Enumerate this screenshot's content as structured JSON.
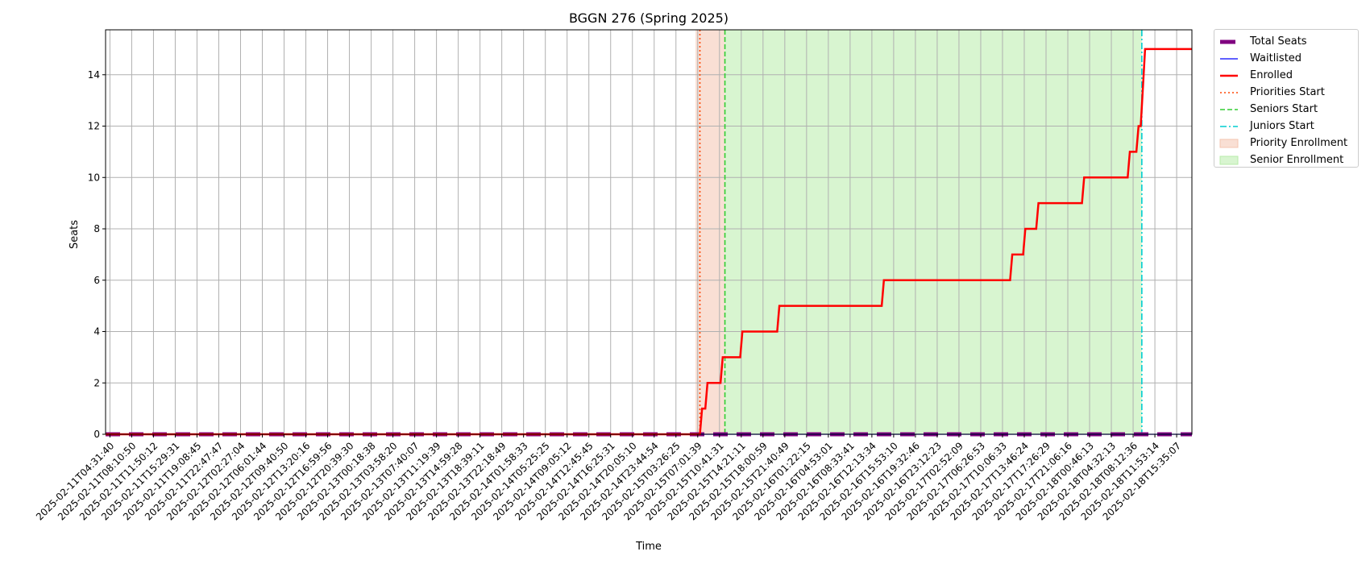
{
  "chart_data": {
    "type": "line",
    "title": "BGGN 276 (Spring 2025)",
    "xlabel": "Time",
    "ylabel": "Seats",
    "ylim": [
      0,
      15.75
    ],
    "y_ticks": [
      0,
      2,
      4,
      6,
      8,
      10,
      12,
      14
    ],
    "x_ticks": [
      "2025-02-11T04:31:40",
      "2025-02-11T08:10:50",
      "2025-02-11T11:50:12",
      "2025-02-11T15:29:31",
      "2025-02-11T19:08:45",
      "2025-02-11T22:47:47",
      "2025-02-12T02:27:04",
      "2025-02-12T06:01:44",
      "2025-02-12T09:40:50",
      "2025-02-12T13:20:16",
      "2025-02-12T16:59:56",
      "2025-02-12T20:39:30",
      "2025-02-13T00:18:38",
      "2025-02-13T03:58:20",
      "2025-02-13T07:40:07",
      "2025-02-13T11:19:39",
      "2025-02-13T14:59:28",
      "2025-02-13T18:39:11",
      "2025-02-13T22:18:49",
      "2025-02-14T01:58:33",
      "2025-02-14T05:25:25",
      "2025-02-14T09:05:12",
      "2025-02-14T12:45:45",
      "2025-02-14T16:25:31",
      "2025-02-14T20:05:10",
      "2025-02-14T23:44:54",
      "2025-02-15T03:26:25",
      "2025-02-15T07:01:39",
      "2025-02-15T10:41:31",
      "2025-02-15T14:21:11",
      "2025-02-15T18:00:59",
      "2025-02-15T21:40:49",
      "2025-02-16T01:22:15",
      "2025-02-16T04:53:01",
      "2025-02-16T08:33:41",
      "2025-02-16T12:13:34",
      "2025-02-16T15:53:10",
      "2025-02-16T19:32:46",
      "2025-02-16T23:12:23",
      "2025-02-17T02:52:09",
      "2025-02-17T06:26:53",
      "2025-02-17T10:06:33",
      "2025-02-17T13:46:24",
      "2025-02-17T17:26:29",
      "2025-02-17T21:06:16",
      "2025-02-18T00:46:13",
      "2025-02-18T04:32:13",
      "2025-02-18T08:12:36",
      "2025-02-18T11:53:14",
      "2025-02-18T15:35:07"
    ],
    "x_range": [
      -0.2,
      49.7
    ],
    "series": [
      {
        "name": "Total Seats",
        "color": "#800080",
        "style": "dashed-thick",
        "points": [
          [
            -0.2,
            0
          ],
          [
            49.7,
            0
          ]
        ]
      },
      {
        "name": "Waitlisted",
        "color": "#0000ff",
        "style": "solid-thin",
        "points": [
          [
            -0.2,
            0
          ],
          [
            49.7,
            0
          ]
        ]
      },
      {
        "name": "Enrolled",
        "color": "#ff0000",
        "style": "solid-thick",
        "points": [
          [
            -0.2,
            0
          ],
          [
            27.1,
            0
          ],
          [
            27.2,
            1
          ],
          [
            27.35,
            1
          ],
          [
            27.45,
            2
          ],
          [
            28.05,
            2
          ],
          [
            28.15,
            3
          ],
          [
            28.95,
            3
          ],
          [
            29.05,
            4
          ],
          [
            30.65,
            4
          ],
          [
            30.75,
            5
          ],
          [
            35.45,
            5
          ],
          [
            35.55,
            6
          ],
          [
            41.35,
            6
          ],
          [
            41.45,
            7
          ],
          [
            41.95,
            7
          ],
          [
            42.05,
            8
          ],
          [
            42.55,
            8
          ],
          [
            42.65,
            9
          ],
          [
            44.65,
            9
          ],
          [
            44.75,
            10
          ],
          [
            46.75,
            10
          ],
          [
            46.85,
            11
          ],
          [
            47.15,
            11
          ],
          [
            47.25,
            12
          ],
          [
            47.35,
            12
          ],
          [
            47.55,
            15
          ],
          [
            49.7,
            15
          ]
        ]
      }
    ],
    "vertical_lines": [
      {
        "name": "Priorities Start",
        "x": 27.1,
        "color": "#ff4500",
        "style": "dotted"
      },
      {
        "name": "Seniors Start",
        "x": 28.25,
        "color": "#32cd32",
        "style": "dashed"
      },
      {
        "name": "Juniors Start",
        "x": 47.4,
        "color": "#00ced1",
        "style": "dashdot"
      }
    ],
    "shaded_regions": [
      {
        "name": "Priority Enrollment",
        "x0": 26.9,
        "x1": 28.25,
        "color": "#f4c4b0"
      },
      {
        "name": "Senior Enrollment",
        "x0": 28.25,
        "x1": 47.4,
        "color": "#b8ecaa"
      }
    ],
    "grid": true,
    "legend_placement": "outside-top-right"
  },
  "legend": {
    "items": [
      {
        "label": "Total Seats",
        "kind": "thick-dash",
        "color": "#800080"
      },
      {
        "label": "Waitlisted",
        "kind": "line",
        "color": "#0000ff"
      },
      {
        "label": "Enrolled",
        "kind": "thick-line",
        "color": "#ff0000"
      },
      {
        "label": "Priorities Start",
        "kind": "dotted",
        "color": "#ff4500"
      },
      {
        "label": "Seniors Start",
        "kind": "dashed",
        "color": "#32cd32"
      },
      {
        "label": "Juniors Start",
        "kind": "dashdot",
        "color": "#00ced1"
      },
      {
        "label": "Priority Enrollment",
        "kind": "patch",
        "color": "#f4c4b0"
      },
      {
        "label": "Senior Enrollment",
        "kind": "patch",
        "color": "#b8ecaa"
      }
    ]
  }
}
